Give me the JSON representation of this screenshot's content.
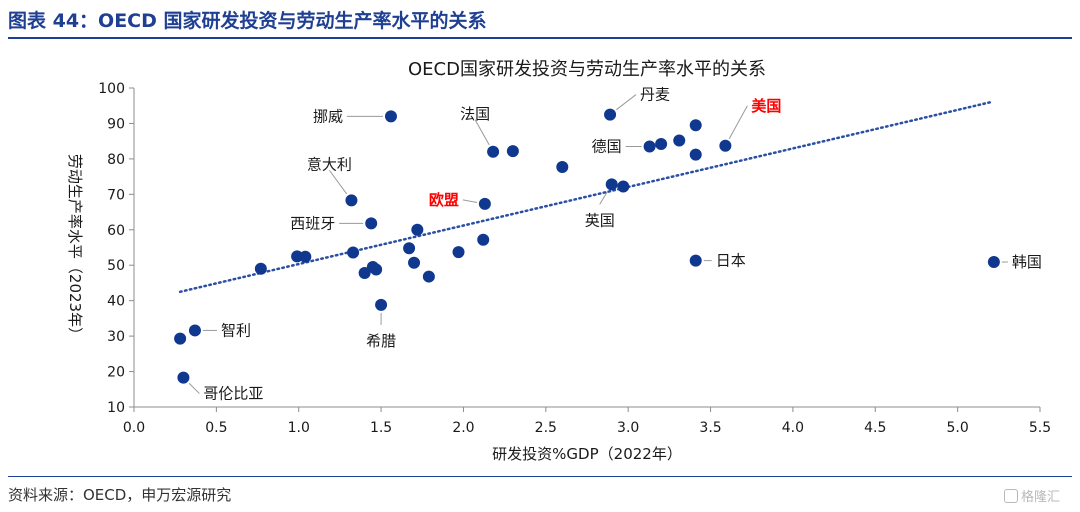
{
  "figure": {
    "title": "图表 44：OECD 国家研发投资与劳动生产率水平的关系",
    "source": "资料来源：OECD，申万宏源研究",
    "watermark": "格隆汇"
  },
  "colors": {
    "accent": "#1f3f93",
    "point": "#10388f",
    "trend": "#2b4fa3",
    "highlight": "#ff0000"
  },
  "chart_data": {
    "type": "scatter",
    "title": "OECD国家研发投资与劳动生产率水平的关系",
    "xlabel": "研发投资%GDP（2022年）",
    "ylabel": "劳动生产率水平（2023年）",
    "xlim": [
      0.0,
      5.5
    ],
    "ylim": [
      10,
      100
    ],
    "xticks": [
      0.0,
      0.5,
      1.0,
      1.5,
      2.0,
      2.5,
      3.0,
      3.5,
      4.0,
      4.5,
      5.0,
      5.5
    ],
    "xtick_labels": [
      "0.0",
      "0.5",
      "1.0",
      "1.5",
      "2.0",
      "2.5",
      "3.0",
      "3.5",
      "4.0",
      "4.5",
      "5.0",
      "5.5"
    ],
    "yticks": [
      10,
      20,
      30,
      40,
      50,
      60,
      70,
      80,
      90,
      100
    ],
    "ytick_labels": [
      "10",
      "20",
      "30",
      "40",
      "50",
      "60",
      "70",
      "80",
      "90",
      "100"
    ],
    "grid": false,
    "legend": "none",
    "trendline": {
      "style": "dotted",
      "x": [
        0.28,
        5.2
      ],
      "y": [
        42.5,
        96
      ]
    },
    "points": [
      {
        "x": 1.56,
        "y": 92
      },
      {
        "x": 2.18,
        "y": 82
      },
      {
        "x": 2.3,
        "y": 82.2
      },
      {
        "x": 2.6,
        "y": 77.7
      },
      {
        "x": 2.89,
        "y": 92.5
      },
      {
        "x": 3.13,
        "y": 83.5
      },
      {
        "x": 3.2,
        "y": 84.2
      },
      {
        "x": 3.31,
        "y": 85.2
      },
      {
        "x": 3.41,
        "y": 89.5
      },
      {
        "x": 3.41,
        "y": 81.2
      },
      {
        "x": 3.59,
        "y": 83.7
      },
      {
        "x": 2.9,
        "y": 72.8
      },
      {
        "x": 2.97,
        "y": 72.2
      },
      {
        "x": 2.13,
        "y": 67.3
      },
      {
        "x": 1.32,
        "y": 68.3
      },
      {
        "x": 1.44,
        "y": 61.8
      },
      {
        "x": 1.72,
        "y": 60
      },
      {
        "x": 1.67,
        "y": 54.8
      },
      {
        "x": 2.12,
        "y": 57.2
      },
      {
        "x": 1.97,
        "y": 53.7
      },
      {
        "x": 1.33,
        "y": 53.6
      },
      {
        "x": 1.7,
        "y": 50.7
      },
      {
        "x": 1.79,
        "y": 46.8
      },
      {
        "x": 1.45,
        "y": 49.5
      },
      {
        "x": 1.47,
        "y": 48.8
      },
      {
        "x": 1.4,
        "y": 47.8
      },
      {
        "x": 0.99,
        "y": 52.5
      },
      {
        "x": 1.04,
        "y": 52.4
      },
      {
        "x": 0.77,
        "y": 49
      },
      {
        "x": 1.5,
        "y": 38.8
      },
      {
        "x": 3.41,
        "y": 51.3
      },
      {
        "x": 5.22,
        "y": 50.9
      },
      {
        "x": 0.37,
        "y": 31.6
      },
      {
        "x": 0.28,
        "y": 29.3
      },
      {
        "x": 0.3,
        "y": 18.3
      }
    ],
    "annotations": [
      {
        "text": "挪威",
        "point": [
          1.56,
          92
        ],
        "highlight": false
      },
      {
        "text": "法国",
        "point": [
          2.18,
          82
        ],
        "highlight": false
      },
      {
        "text": "丹麦",
        "point": [
          2.89,
          92.5
        ],
        "highlight": false
      },
      {
        "text": "美国",
        "point": [
          3.59,
          83.7
        ],
        "highlight": true
      },
      {
        "text": "德国",
        "point": [
          3.13,
          83.5
        ],
        "highlight": false
      },
      {
        "text": "意大利",
        "point": [
          1.32,
          68.3
        ],
        "highlight": false
      },
      {
        "text": "欧盟",
        "point": [
          2.13,
          67.3
        ],
        "highlight": true
      },
      {
        "text": "英国",
        "point": [
          2.9,
          72.8
        ],
        "highlight": false
      },
      {
        "text": "西班牙",
        "point": [
          1.44,
          61.8
        ],
        "highlight": false
      },
      {
        "text": "日本",
        "point": [
          3.41,
          51.3
        ],
        "highlight": false
      },
      {
        "text": "韩国",
        "point": [
          5.22,
          50.9
        ],
        "highlight": false
      },
      {
        "text": "希腊",
        "point": [
          1.5,
          38.8
        ],
        "highlight": false
      },
      {
        "text": "智利",
        "point": [
          0.37,
          31.6
        ],
        "highlight": false
      },
      {
        "text": "哥伦比亚",
        "point": [
          0.3,
          18.3
        ],
        "highlight": false
      }
    ]
  }
}
